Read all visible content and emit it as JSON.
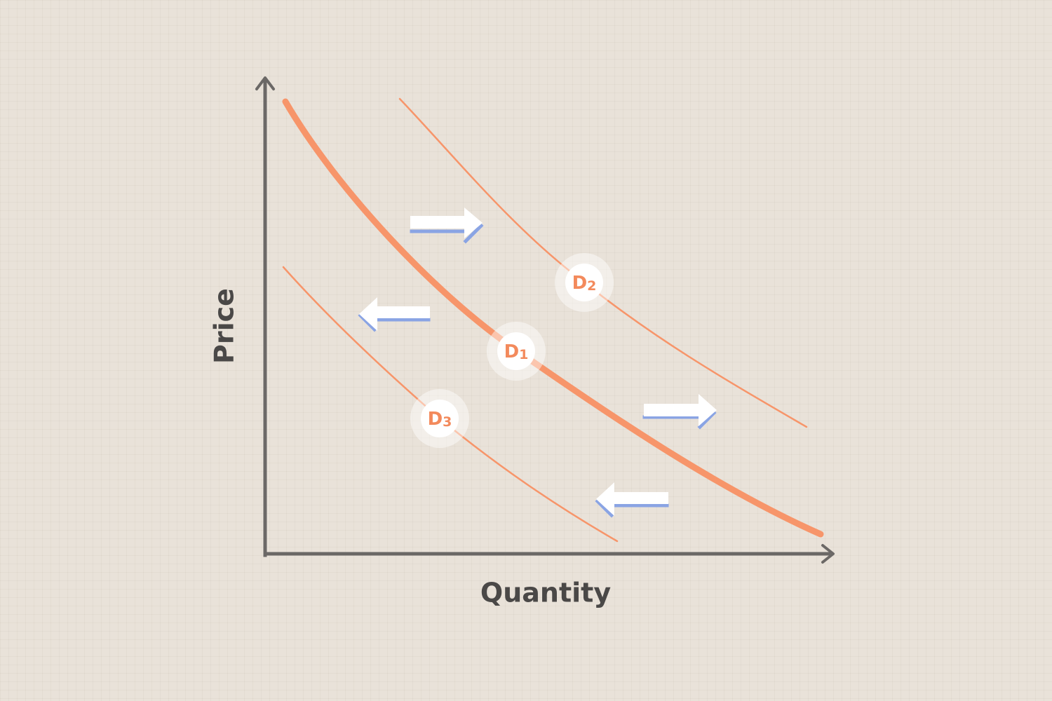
{
  "axes": {
    "y_label": "Price",
    "x_label": "Quantity"
  },
  "curves": [
    {
      "id": "d1",
      "label_main": "D",
      "label_sub": "1",
      "style": "bold"
    },
    {
      "id": "d2",
      "label_main": "D",
      "label_sub": "2",
      "style": "thin"
    },
    {
      "id": "d3",
      "label_main": "D",
      "label_sub": "3",
      "style": "thin"
    }
  ],
  "shift_arrows": [
    {
      "id": "right-upper",
      "direction": "right"
    },
    {
      "id": "left-upper",
      "direction": "left"
    },
    {
      "id": "right-lower",
      "direction": "right"
    },
    {
      "id": "left-lower",
      "direction": "left"
    }
  ],
  "colors": {
    "background": "#e9e2d9",
    "curve": "#f7956a",
    "axis": "#6b6866",
    "arrow_fill": "#ffffff",
    "arrow_shadow": "#8aa4e4",
    "label_text": "#f38a5c"
  }
}
